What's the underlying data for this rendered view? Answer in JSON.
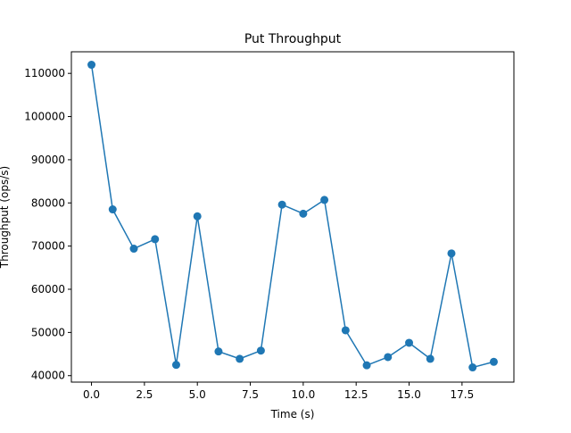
{
  "chart_data": {
    "type": "line",
    "title": "Put Throughput",
    "xlabel": "Time (s)",
    "ylabel": "Throughput (ops/s)",
    "xlim": [
      -0.95,
      19.95
    ],
    "ylim": [
      38500,
      115000
    ],
    "x_ticks": [
      0,
      2.5,
      5,
      7.5,
      10,
      12.5,
      15,
      17.5
    ],
    "x_tick_labels": [
      "0.0",
      "2.5",
      "5.0",
      "7.5",
      "10.0",
      "12.5",
      "15.0",
      "17.5"
    ],
    "y_ticks": [
      40000,
      50000,
      60000,
      70000,
      80000,
      90000,
      100000,
      110000
    ],
    "y_tick_labels": [
      "40000",
      "50000",
      "60000",
      "70000",
      "80000",
      "90000",
      "100000",
      "110000"
    ],
    "grid": false,
    "series": [
      {
        "color": "#1f77b4",
        "marker": "circle",
        "x": [
          0,
          1,
          2,
          3,
          4,
          5,
          6,
          7,
          8,
          9,
          10,
          11,
          12,
          13,
          14,
          15,
          16,
          17,
          18,
          19
        ],
        "y": [
          112000,
          78500,
          69400,
          71600,
          42500,
          76900,
          45600,
          43900,
          45800,
          79600,
          77500,
          80700,
          50500,
          42400,
          44300,
          47600,
          43900,
          68300,
          41900,
          43200
        ]
      }
    ]
  }
}
